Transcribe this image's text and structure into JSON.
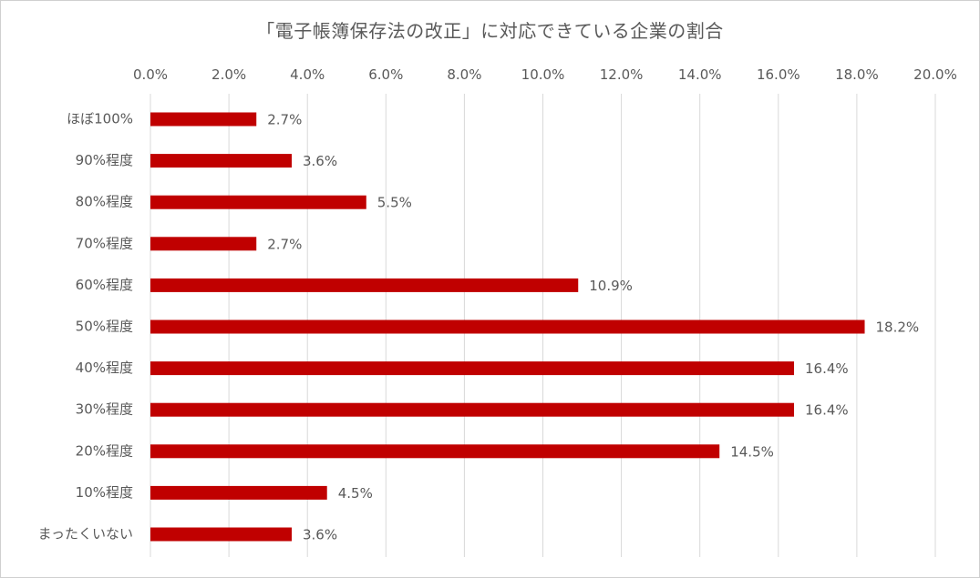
{
  "chart_data": {
    "type": "bar",
    "orientation": "horizontal",
    "title": "「電子帳簿保存法の改正」に対応できている企業の割合",
    "xlabel": "",
    "ylabel": "",
    "xlim": [
      0,
      20
    ],
    "x_ticks": [
      "0.0%",
      "2.0%",
      "4.0%",
      "6.0%",
      "8.0%",
      "10.0%",
      "12.0%",
      "14.0%",
      "16.0%",
      "18.0%",
      "20.0%"
    ],
    "x_axis_position": "top",
    "grid": true,
    "legend": "none",
    "bar_color": "#C00000",
    "categories": [
      "ほぼ100%",
      "90%程度",
      "80%程度",
      "70%程度",
      "60%程度",
      "50%程度",
      "40%程度",
      "30%程度",
      "20%程度",
      "10%程度",
      "まったくいない"
    ],
    "values": [
      2.7,
      3.6,
      5.5,
      2.7,
      10.9,
      18.2,
      16.4,
      16.4,
      14.5,
      4.5,
      3.6
    ],
    "data_labels": [
      "2.7%",
      "3.6%",
      "5.5%",
      "2.7%",
      "10.9%",
      "18.2%",
      "16.4%",
      "16.4%",
      "14.5%",
      "4.5%",
      "3.6%"
    ]
  }
}
